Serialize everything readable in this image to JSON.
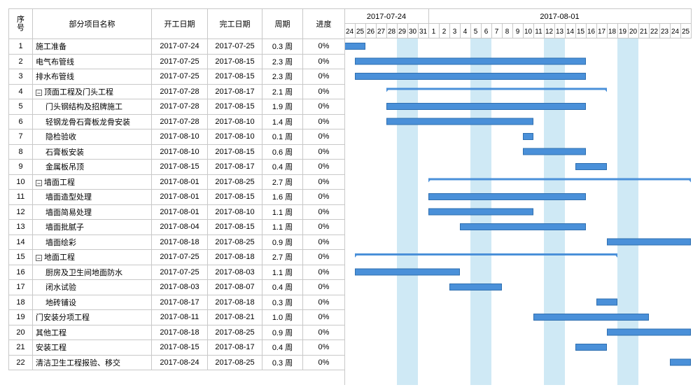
{
  "columns": {
    "seq": "序\n号",
    "name": "部分项目名称",
    "start": "开工日期",
    "end": "完工日期",
    "dur": "周期",
    "prog": "进度"
  },
  "timeline": {
    "week_labels": [
      "2017-07-24",
      "2017-08-01"
    ],
    "day_labels": [
      "24",
      "25",
      "26",
      "27",
      "28",
      "29",
      "30",
      "31",
      "1",
      "2",
      "3",
      "4",
      "5",
      "6",
      "7",
      "8",
      "9",
      "10",
      "11",
      "12",
      "13",
      "14",
      "15",
      "16",
      "17",
      "18",
      "19",
      "20",
      "21",
      "22",
      "23",
      "24",
      "25"
    ],
    "weekend_color": "#cfe9f5",
    "bar_color": "#4a90d9"
  },
  "rows": [
    {
      "seq": "1",
      "name": "施工准备",
      "start": "2017-07-24",
      "end": "2017-07-25",
      "dur": "0.3 周",
      "prog": "0%",
      "level": 1,
      "bs": 0,
      "be": 2,
      "summary": false
    },
    {
      "seq": "2",
      "name": "电气布管线",
      "start": "2017-07-25",
      "end": "2017-08-15",
      "dur": "2.3 周",
      "prog": "0%",
      "level": 1,
      "bs": 1,
      "be": 23,
      "summary": false
    },
    {
      "seq": "3",
      "name": "排水布管线",
      "start": "2017-07-25",
      "end": "2017-08-15",
      "dur": "2.3 周",
      "prog": "0%",
      "level": 1,
      "bs": 1,
      "be": 23,
      "summary": false
    },
    {
      "seq": "4",
      "name": "顶面工程及门头工程",
      "start": "2017-07-28",
      "end": "2017-08-17",
      "dur": "2.1 周",
      "prog": "0%",
      "level": 0,
      "bs": 4,
      "be": 25,
      "summary": true
    },
    {
      "seq": "5",
      "name": "门头钢结构及招牌施工",
      "start": "2017-07-28",
      "end": "2017-08-15",
      "dur": "1.9 周",
      "prog": "0%",
      "level": 2,
      "bs": 4,
      "be": 23,
      "summary": false
    },
    {
      "seq": "6",
      "name": "轻钢龙骨石膏板龙骨安装",
      "start": "2017-07-28",
      "end": "2017-08-10",
      "dur": "1.4 周",
      "prog": "0%",
      "level": 2,
      "bs": 4,
      "be": 18,
      "summary": false
    },
    {
      "seq": "7",
      "name": "隐检验收",
      "start": "2017-08-10",
      "end": "2017-08-10",
      "dur": "0.1 周",
      "prog": "0%",
      "level": 2,
      "bs": 17,
      "be": 18,
      "summary": false
    },
    {
      "seq": "8",
      "name": "石膏板安装",
      "start": "2017-08-10",
      "end": "2017-08-15",
      "dur": "0.6 周",
      "prog": "0%",
      "level": 2,
      "bs": 17,
      "be": 23,
      "summary": false
    },
    {
      "seq": "9",
      "name": "金属板吊顶",
      "start": "2017-08-15",
      "end": "2017-08-17",
      "dur": "0.4 周",
      "prog": "0%",
      "level": 2,
      "bs": 22,
      "be": 25,
      "summary": false
    },
    {
      "seq": "10",
      "name": "墙面工程",
      "start": "2017-08-01",
      "end": "2017-08-25",
      "dur": "2.7 周",
      "prog": "0%",
      "level": 0,
      "bs": 8,
      "be": 33,
      "summary": true
    },
    {
      "seq": "11",
      "name": "墙面造型处理",
      "start": "2017-08-01",
      "end": "2017-08-15",
      "dur": "1.6 周",
      "prog": "0%",
      "level": 2,
      "bs": 8,
      "be": 23,
      "summary": false
    },
    {
      "seq": "12",
      "name": "墙面简易处理",
      "start": "2017-08-01",
      "end": "2017-08-10",
      "dur": "1.1 周",
      "prog": "0%",
      "level": 2,
      "bs": 8,
      "be": 18,
      "summary": false
    },
    {
      "seq": "13",
      "name": "墙面批腻子",
      "start": "2017-08-04",
      "end": "2017-08-15",
      "dur": "1.1 周",
      "prog": "0%",
      "level": 2,
      "bs": 11,
      "be": 23,
      "summary": false
    },
    {
      "seq": "14",
      "name": "墙面绘彩",
      "start": "2017-08-18",
      "end": "2017-08-25",
      "dur": "0.9 周",
      "prog": "0%",
      "level": 2,
      "bs": 25,
      "be": 33,
      "summary": false
    },
    {
      "seq": "15",
      "name": "地面工程",
      "start": "2017-07-25",
      "end": "2017-08-18",
      "dur": "2.7 周",
      "prog": "0%",
      "level": 0,
      "bs": 1,
      "be": 26,
      "summary": true
    },
    {
      "seq": "16",
      "name": "厨房及卫生间地面防水",
      "start": "2017-07-25",
      "end": "2017-08-03",
      "dur": "1.1 周",
      "prog": "0%",
      "level": 2,
      "bs": 1,
      "be": 11,
      "summary": false
    },
    {
      "seq": "17",
      "name": "闭水试验",
      "start": "2017-08-03",
      "end": "2017-08-07",
      "dur": "0.4 周",
      "prog": "0%",
      "level": 2,
      "bs": 10,
      "be": 15,
      "summary": false
    },
    {
      "seq": "18",
      "name": "地砖铺设",
      "start": "2017-08-17",
      "end": "2017-08-18",
      "dur": "0.3 周",
      "prog": "0%",
      "level": 2,
      "bs": 24,
      "be": 26,
      "summary": false
    },
    {
      "seq": "19",
      "name": "门安装分项工程",
      "start": "2017-08-11",
      "end": "2017-08-21",
      "dur": "1.0 周",
      "prog": "0%",
      "level": 1,
      "bs": 18,
      "be": 29,
      "summary": false
    },
    {
      "seq": "20",
      "name": "其他工程",
      "start": "2017-08-18",
      "end": "2017-08-25",
      "dur": "0.9 周",
      "prog": "0%",
      "level": 1,
      "bs": 25,
      "be": 33,
      "summary": false
    },
    {
      "seq": "21",
      "name": "安装工程",
      "start": "2017-08-15",
      "end": "2017-08-17",
      "dur": "0.4 周",
      "prog": "0%",
      "level": 1,
      "bs": 22,
      "be": 25,
      "summary": false
    },
    {
      "seq": "22",
      "name": "清洁卫生工程报验、移交",
      "start": "2017-08-24",
      "end": "2017-08-25",
      "dur": "0.3 周",
      "prog": "0%",
      "level": 1,
      "bs": 31,
      "be": 33,
      "summary": false
    }
  ]
}
